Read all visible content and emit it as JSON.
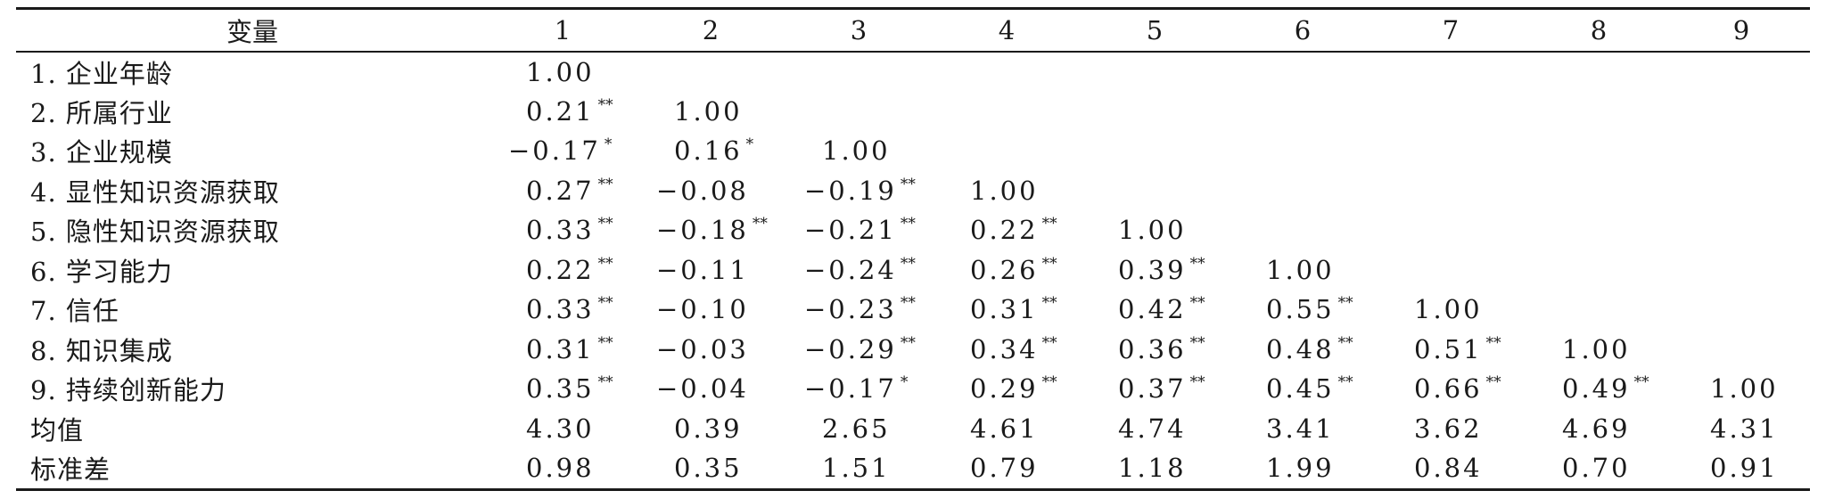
{
  "table": {
    "header": [
      "变量",
      "1",
      "2",
      "3",
      "4",
      "5",
      "6",
      "7",
      "8",
      "9"
    ],
    "rows": [
      {
        "label": "1. 企业年龄",
        "cells": [
          {
            "v": "1.00",
            "s": ""
          },
          {
            "v": "",
            "s": ""
          },
          {
            "v": "",
            "s": ""
          },
          {
            "v": "",
            "s": ""
          },
          {
            "v": "",
            "s": ""
          },
          {
            "v": "",
            "s": ""
          },
          {
            "v": "",
            "s": ""
          },
          {
            "v": "",
            "s": ""
          },
          {
            "v": "",
            "s": ""
          }
        ]
      },
      {
        "label": "2. 所属行业",
        "cells": [
          {
            "v": "0.21",
            "s": "**"
          },
          {
            "v": "1.00",
            "s": ""
          },
          {
            "v": "",
            "s": ""
          },
          {
            "v": "",
            "s": ""
          },
          {
            "v": "",
            "s": ""
          },
          {
            "v": "",
            "s": ""
          },
          {
            "v": "",
            "s": ""
          },
          {
            "v": "",
            "s": ""
          },
          {
            "v": "",
            "s": ""
          }
        ]
      },
      {
        "label": "3. 企业规模",
        "cells": [
          {
            "v": "−0.17",
            "s": "*"
          },
          {
            "v": "0.16",
            "s": "*"
          },
          {
            "v": "1.00",
            "s": ""
          },
          {
            "v": "",
            "s": ""
          },
          {
            "v": "",
            "s": ""
          },
          {
            "v": "",
            "s": ""
          },
          {
            "v": "",
            "s": ""
          },
          {
            "v": "",
            "s": ""
          },
          {
            "v": "",
            "s": ""
          }
        ]
      },
      {
        "label": "4. 显性知识资源获取",
        "cells": [
          {
            "v": "0.27",
            "s": "**"
          },
          {
            "v": "−0.08",
            "s": ""
          },
          {
            "v": "−0.19",
            "s": "**"
          },
          {
            "v": "1.00",
            "s": ""
          },
          {
            "v": "",
            "s": ""
          },
          {
            "v": "",
            "s": ""
          },
          {
            "v": "",
            "s": ""
          },
          {
            "v": "",
            "s": ""
          },
          {
            "v": "",
            "s": ""
          }
        ]
      },
      {
        "label": "5. 隐性知识资源获取",
        "cells": [
          {
            "v": "0.33",
            "s": "**"
          },
          {
            "v": "−0.18",
            "s": "**"
          },
          {
            "v": "−0.21",
            "s": "**"
          },
          {
            "v": "0.22",
            "s": "**"
          },
          {
            "v": "1.00",
            "s": ""
          },
          {
            "v": "",
            "s": ""
          },
          {
            "v": "",
            "s": ""
          },
          {
            "v": "",
            "s": ""
          },
          {
            "v": "",
            "s": ""
          }
        ]
      },
      {
        "label": "6. 学习能力",
        "cells": [
          {
            "v": "0.22",
            "s": "**"
          },
          {
            "v": "−0.11",
            "s": ""
          },
          {
            "v": "−0.24",
            "s": "**"
          },
          {
            "v": "0.26",
            "s": "**"
          },
          {
            "v": "0.39",
            "s": "**"
          },
          {
            "v": "1.00",
            "s": ""
          },
          {
            "v": "",
            "s": ""
          },
          {
            "v": "",
            "s": ""
          },
          {
            "v": "",
            "s": ""
          }
        ]
      },
      {
        "label": "7. 信任",
        "cells": [
          {
            "v": "0.33",
            "s": "**"
          },
          {
            "v": "−0.10",
            "s": ""
          },
          {
            "v": "−0.23",
            "s": "**"
          },
          {
            "v": "0.31",
            "s": "**"
          },
          {
            "v": "0.42",
            "s": "**"
          },
          {
            "v": "0.55",
            "s": "**"
          },
          {
            "v": "1.00",
            "s": ""
          },
          {
            "v": "",
            "s": ""
          },
          {
            "v": "",
            "s": ""
          }
        ]
      },
      {
        "label": "8. 知识集成",
        "cells": [
          {
            "v": "0.31",
            "s": "**"
          },
          {
            "v": "−0.03",
            "s": ""
          },
          {
            "v": "−0.29",
            "s": "**"
          },
          {
            "v": "0.34",
            "s": "**"
          },
          {
            "v": "0.36",
            "s": "**"
          },
          {
            "v": "0.48",
            "s": "**"
          },
          {
            "v": "0.51",
            "s": "**"
          },
          {
            "v": "1.00",
            "s": ""
          },
          {
            "v": "",
            "s": ""
          }
        ]
      },
      {
        "label": "9. 持续创新能力",
        "cells": [
          {
            "v": "0.35",
            "s": "**"
          },
          {
            "v": "−0.04",
            "s": ""
          },
          {
            "v": "−0.17",
            "s": "*"
          },
          {
            "v": "0.29",
            "s": "**"
          },
          {
            "v": "0.37",
            "s": "**"
          },
          {
            "v": "0.45",
            "s": "**"
          },
          {
            "v": "0.66",
            "s": "**"
          },
          {
            "v": "0.49",
            "s": "**"
          },
          {
            "v": "1.00",
            "s": ""
          }
        ]
      },
      {
        "label": "均值",
        "cells": [
          {
            "v": "4.30",
            "s": ""
          },
          {
            "v": "0.39",
            "s": ""
          },
          {
            "v": "2.65",
            "s": ""
          },
          {
            "v": "4.61",
            "s": ""
          },
          {
            "v": "4.74",
            "s": ""
          },
          {
            "v": "3.41",
            "s": ""
          },
          {
            "v": "3.62",
            "s": ""
          },
          {
            "v": "4.69",
            "s": ""
          },
          {
            "v": "4.31",
            "s": ""
          }
        ]
      },
      {
        "label": "标准差",
        "cells": [
          {
            "v": "0.98",
            "s": ""
          },
          {
            "v": "0.35",
            "s": ""
          },
          {
            "v": "1.51",
            "s": ""
          },
          {
            "v": "0.79",
            "s": ""
          },
          {
            "v": "1.18",
            "s": ""
          },
          {
            "v": "1.99",
            "s": ""
          },
          {
            "v": "0.84",
            "s": ""
          },
          {
            "v": "0.70",
            "s": ""
          },
          {
            "v": "0.91",
            "s": ""
          }
        ]
      }
    ]
  }
}
